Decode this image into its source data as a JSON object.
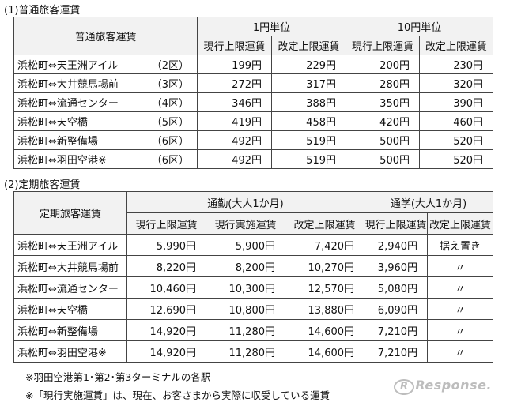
{
  "section1": {
    "title": "(1)普通旅客運賃",
    "header": {
      "col_label": "普通旅客運賃",
      "group1": "1円単位",
      "group2": "10円単位",
      "current": "現行上限運賃",
      "revised": "改定上限運賃"
    },
    "rows": [
      {
        "route": "浜松町⇔天王洲アイル",
        "zone": "（2区）",
        "c1": "199円",
        "r1": "229円",
        "c10": "200円",
        "r10": "230円"
      },
      {
        "route": "浜松町⇔大井競馬場前",
        "zone": "（3区）",
        "c1": "272円",
        "r1": "317円",
        "c10": "280円",
        "r10": "320円"
      },
      {
        "route": "浜松町⇔流通センター",
        "zone": "（4区）",
        "c1": "346円",
        "r1": "388円",
        "c10": "350円",
        "r10": "390円"
      },
      {
        "route": "浜松町⇔天空橋",
        "zone": "（5区）",
        "c1": "419円",
        "r1": "458円",
        "c10": "420円",
        "r10": "460円"
      },
      {
        "route": "浜松町⇔新整備場",
        "zone": "（6区）",
        "c1": "492円",
        "r1": "519円",
        "c10": "500円",
        "r10": "520円"
      },
      {
        "route": "浜松町⇔羽田空港※",
        "zone": "（6区）",
        "c1": "492円",
        "r1": "519円",
        "c10": "500円",
        "r10": "520円"
      }
    ]
  },
  "section2": {
    "title": "(2)定期旅客運賃",
    "header": {
      "col_label": "定期旅客運賃",
      "commute": "通勤(大人1か月)",
      "school": "通学(大人1か月)",
      "current": "現行上限運賃",
      "actual": "現行実施運賃",
      "revised": "改定上限運賃"
    },
    "rows": [
      {
        "route": "浜松町⇔天王洲アイル",
        "cc": "5,990円",
        "ca": "5,900円",
        "cr": "7,420円",
        "sc": "2,940円",
        "sr": "据え置き"
      },
      {
        "route": "浜松町⇔大井競馬場前",
        "cc": "8,220円",
        "ca": "8,200円",
        "cr": "10,270円",
        "sc": "3,960円",
        "sr": "〃"
      },
      {
        "route": "浜松町⇔流通センター",
        "cc": "10,460円",
        "ca": "10,300円",
        "cr": "12,570円",
        "sc": "5,080円",
        "sr": "〃"
      },
      {
        "route": "浜松町⇔天空橋",
        "cc": "12,690円",
        "ca": "10,800円",
        "cr": "13,880円",
        "sc": "6,090円",
        "sr": "〃"
      },
      {
        "route": "浜松町⇔新整備場",
        "cc": "14,920円",
        "ca": "11,280円",
        "cr": "14,600円",
        "sc": "7,210円",
        "sr": "〃"
      },
      {
        "route": "浜松町⇔羽田空港※",
        "cc": "14,920円",
        "ca": "11,280円",
        "cr": "14,600円",
        "sc": "7,210円",
        "sr": "〃"
      }
    ]
  },
  "notes": [
    "※羽田空港第1･第2･第3ターミナルの各駅",
    "※「現行実施運賃」は、現在、お客さまから実際に収受している運賃"
  ],
  "watermark": "Response."
}
